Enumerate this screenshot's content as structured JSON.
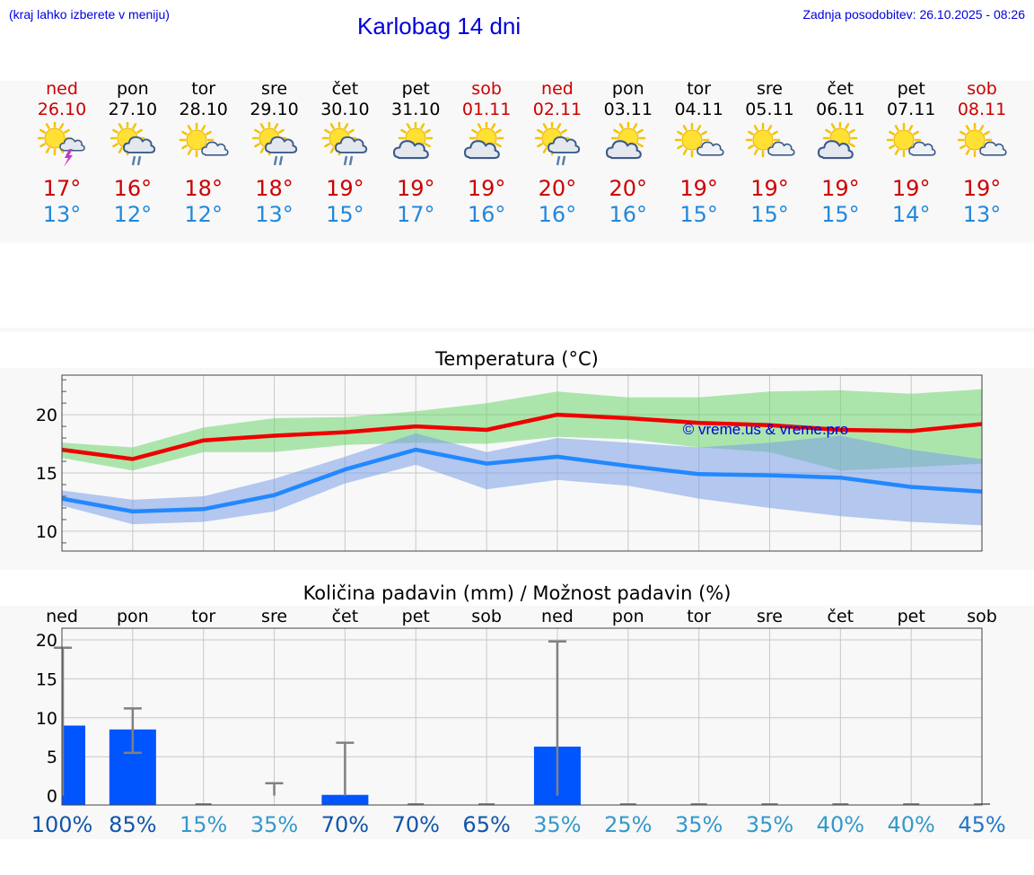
{
  "header": {
    "menu_hint": "(kraj lahko izberete v meniju)",
    "title": "Karlobag 14 dni",
    "updated": "Zadnja posodobitev: 26.10.2025 - 08:26"
  },
  "colors": {
    "weekend": "#cc0000",
    "weekday": "#000000",
    "temp_max": "#cc0000",
    "temp_min": "#2288dd",
    "link_blue": "#0000dd",
    "rain_bar": "#0055ff"
  },
  "days": [
    {
      "name": "ned",
      "date": "26.10",
      "weekend": true,
      "icon": "sun-cloud-thunder-icon",
      "tmax": "17°",
      "tmin": "13°"
    },
    {
      "name": "pon",
      "date": "27.10",
      "weekend": false,
      "icon": "sun-cloud-rain-icon",
      "tmax": "16°",
      "tmin": "12°"
    },
    {
      "name": "tor",
      "date": "28.10",
      "weekend": false,
      "icon": "sun-small-cloud-icon",
      "tmax": "18°",
      "tmin": "12°"
    },
    {
      "name": "sre",
      "date": "29.10",
      "weekend": false,
      "icon": "sun-cloud-rain-icon",
      "tmax": "18°",
      "tmin": "13°"
    },
    {
      "name": "čet",
      "date": "30.10",
      "weekend": false,
      "icon": "sun-cloud-rain-icon",
      "tmax": "19°",
      "tmin": "15°"
    },
    {
      "name": "pet",
      "date": "31.10",
      "weekend": false,
      "icon": "sun-cloud-icon",
      "tmax": "19°",
      "tmin": "17°"
    },
    {
      "name": "sob",
      "date": "01.11",
      "weekend": true,
      "icon": "sun-cloud-icon",
      "tmax": "19°",
      "tmin": "16°"
    },
    {
      "name": "ned",
      "date": "02.11",
      "weekend": true,
      "icon": "sun-cloud-rain-icon",
      "tmax": "20°",
      "tmin": "16°"
    },
    {
      "name": "pon",
      "date": "03.11",
      "weekend": false,
      "icon": "sun-cloud-icon",
      "tmax": "20°",
      "tmin": "16°"
    },
    {
      "name": "tor",
      "date": "04.11",
      "weekend": false,
      "icon": "sun-small-cloud-icon",
      "tmax": "19°",
      "tmin": "15°"
    },
    {
      "name": "sre",
      "date": "05.11",
      "weekend": false,
      "icon": "sun-small-cloud-icon",
      "tmax": "19°",
      "tmin": "15°"
    },
    {
      "name": "čet",
      "date": "06.11",
      "weekend": false,
      "icon": "sun-cloud-icon",
      "tmax": "19°",
      "tmin": "15°"
    },
    {
      "name": "pet",
      "date": "07.11",
      "weekend": false,
      "icon": "sun-small-cloud-icon",
      "tmax": "19°",
      "tmin": "14°"
    },
    {
      "name": "sob",
      "date": "08.11",
      "weekend": true,
      "icon": "sun-small-cloud-icon",
      "tmax": "19°",
      "tmin": "13°"
    }
  ],
  "chart_data": [
    {
      "type": "line",
      "title": "Temperatura (°C)",
      "watermark": "© vreme.us & vreme.pro",
      "ylim": [
        8.3,
        23.4
      ],
      "yticks": [
        "10",
        "15",
        "20"
      ],
      "grid": true,
      "series": [
        {
          "color": "#ee0000",
          "values": [
            17.0,
            16.2,
            17.8,
            18.2,
            18.5,
            19.0,
            18.7,
            20.0,
            19.7,
            19.3,
            19.1,
            18.7,
            18.6,
            19.2
          ]
        },
        {
          "color": "#2288ff",
          "values": [
            12.8,
            11.7,
            11.9,
            13.1,
            15.3,
            17.0,
            15.8,
            16.4,
            15.6,
            14.9,
            14.8,
            14.6,
            13.8,
            13.4
          ]
        }
      ],
      "bands": [
        {
          "color": "#6dd66d",
          "upper": [
            17.6,
            17.2,
            18.9,
            19.7,
            19.8,
            20.3,
            21.0,
            22.0,
            21.5,
            21.5,
            22.0,
            22.1,
            21.8,
            22.2
          ],
          "lower": [
            16.3,
            15.2,
            16.8,
            16.8,
            17.4,
            17.6,
            17.5,
            18.1,
            17.9,
            17.2,
            16.8,
            15.2,
            15.5,
            15.8
          ]
        },
        {
          "color": "#7a9ee8",
          "upper": [
            13.5,
            12.7,
            13.0,
            14.5,
            16.4,
            18.4,
            16.8,
            18.0,
            17.6,
            17.2,
            17.6,
            18.2,
            17.0,
            16.2
          ],
          "lower": [
            12.2,
            10.6,
            10.8,
            11.7,
            14.1,
            15.7,
            13.6,
            14.4,
            13.9,
            12.8,
            12.0,
            11.3,
            10.8,
            10.5
          ]
        }
      ]
    },
    {
      "type": "bar",
      "title": "Količina padavin (mm) / Možnost padavin (%)",
      "categories": [
        "ned",
        "pon",
        "tor",
        "sre",
        "čet",
        "pet",
        "sob",
        "ned",
        "pon",
        "tor",
        "sre",
        "čet",
        "pet",
        "sob"
      ],
      "ylim": [
        -1.2,
        21.5
      ],
      "yticks": [
        "0",
        "5",
        "10",
        "15",
        "20"
      ],
      "grid": true,
      "values": [
        9.0,
        8.5,
        0,
        0,
        0.1,
        0,
        0,
        6.3,
        0,
        0,
        0,
        0,
        0,
        0
      ],
      "error_low": [
        0,
        5.5,
        0,
        0,
        0,
        0,
        0,
        0,
        0,
        0,
        0,
        0,
        0,
        0
      ],
      "error_high": [
        19.0,
        11.2,
        0,
        1.6,
        6.8,
        0,
        0,
        19.8,
        0,
        0,
        0,
        0,
        0,
        0
      ],
      "probability": [
        "100%",
        "85%",
        "15%",
        "35%",
        "70%",
        "70%",
        "65%",
        "35%",
        "25%",
        "35%",
        "35%",
        "40%",
        "40%",
        "45%"
      ]
    }
  ]
}
